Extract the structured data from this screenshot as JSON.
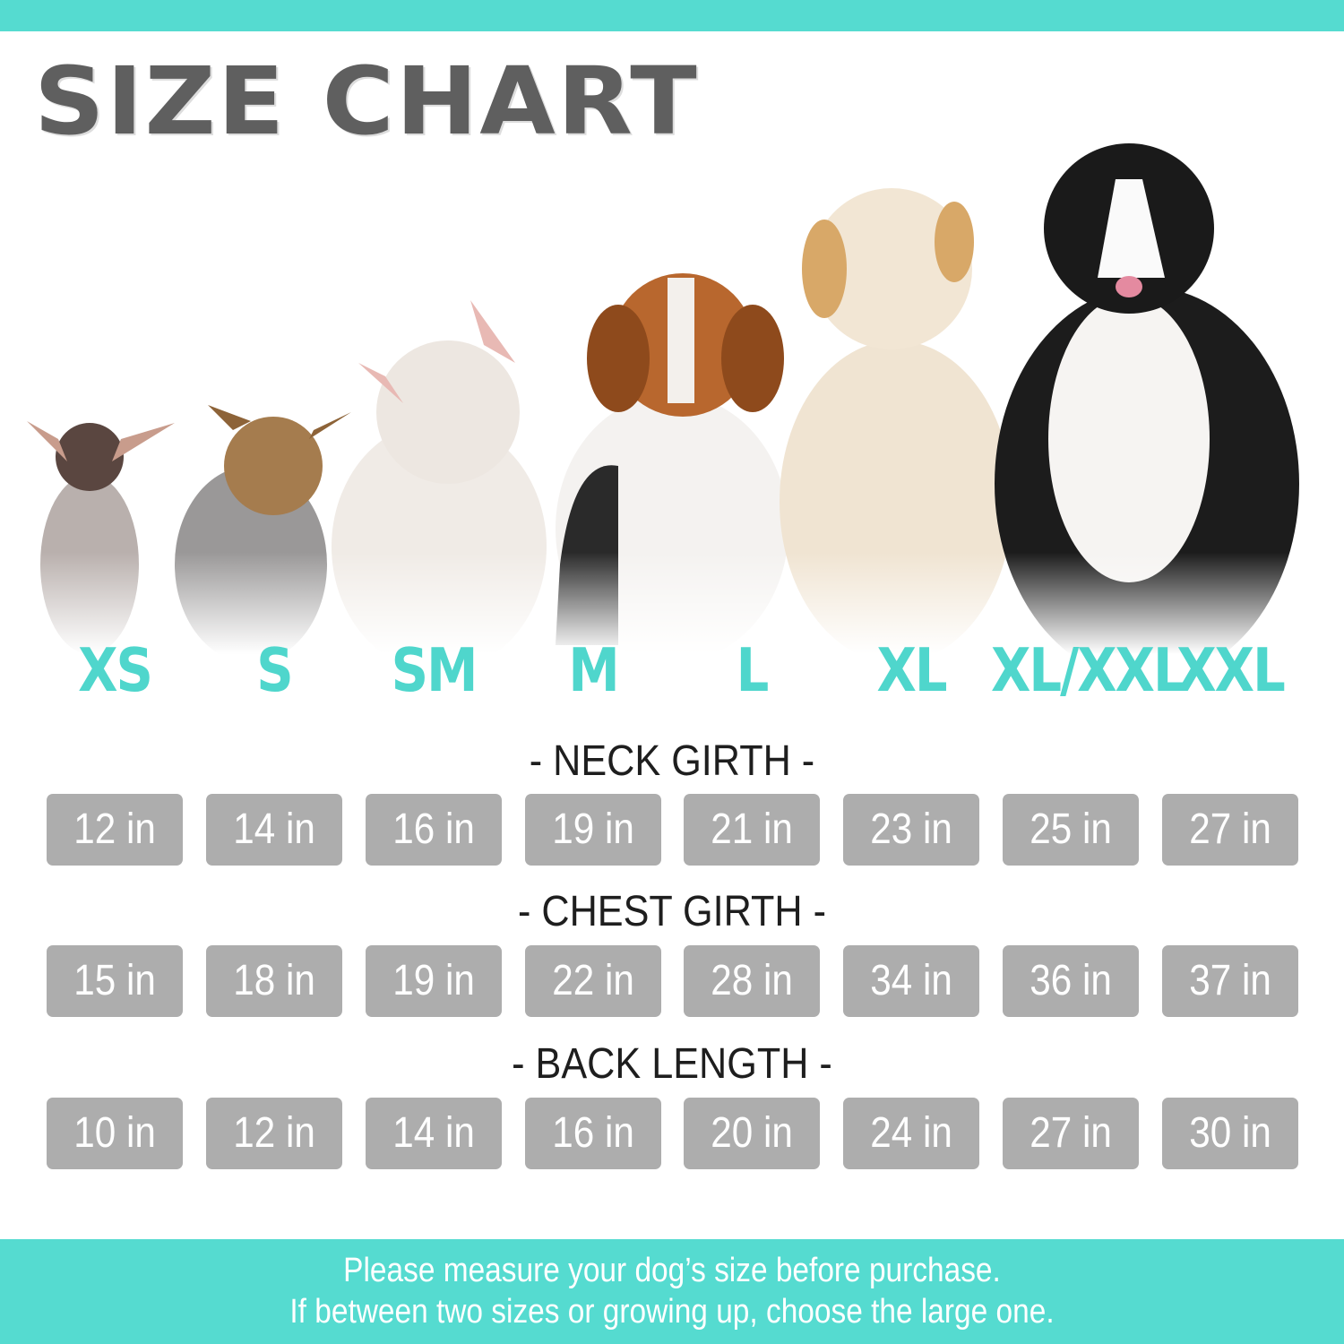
{
  "title": "SIZE CHART",
  "colors": {
    "accent": "#55dbd0",
    "size_label": "#4fd6cc",
    "box": "#adadad",
    "title": "#5f5f5f"
  },
  "dogs": [
    "chihuahua",
    "yorkshire-terrier",
    "french-bulldog",
    "beagle",
    "golden-retriever",
    "bernese-mountain-dog"
  ],
  "sizes": [
    "XS",
    "S",
    "SM",
    "M",
    "L",
    "XL",
    "XL/XXL",
    "XXL"
  ],
  "measurements": [
    {
      "label": "- NECK GIRTH -",
      "values": [
        "12 in",
        "14 in",
        "16 in",
        "19 in",
        "21 in",
        "23 in",
        "25 in",
        "27 in"
      ]
    },
    {
      "label": "- CHEST GIRTH -",
      "values": [
        "15 in",
        "18 in",
        "19 in",
        "22 in",
        "28 in",
        "34 in",
        "36 in",
        "37 in"
      ]
    },
    {
      "label": "- BACK LENGTH -",
      "values": [
        "10 in",
        "12 in",
        "14 in",
        "16 in",
        "20 in",
        "24 in",
        "27 in",
        "30 in"
      ]
    }
  ],
  "footer": {
    "line1": "Please measure your dog’s size before purchase.",
    "line2": "If between two sizes or growing up, choose the large one."
  }
}
